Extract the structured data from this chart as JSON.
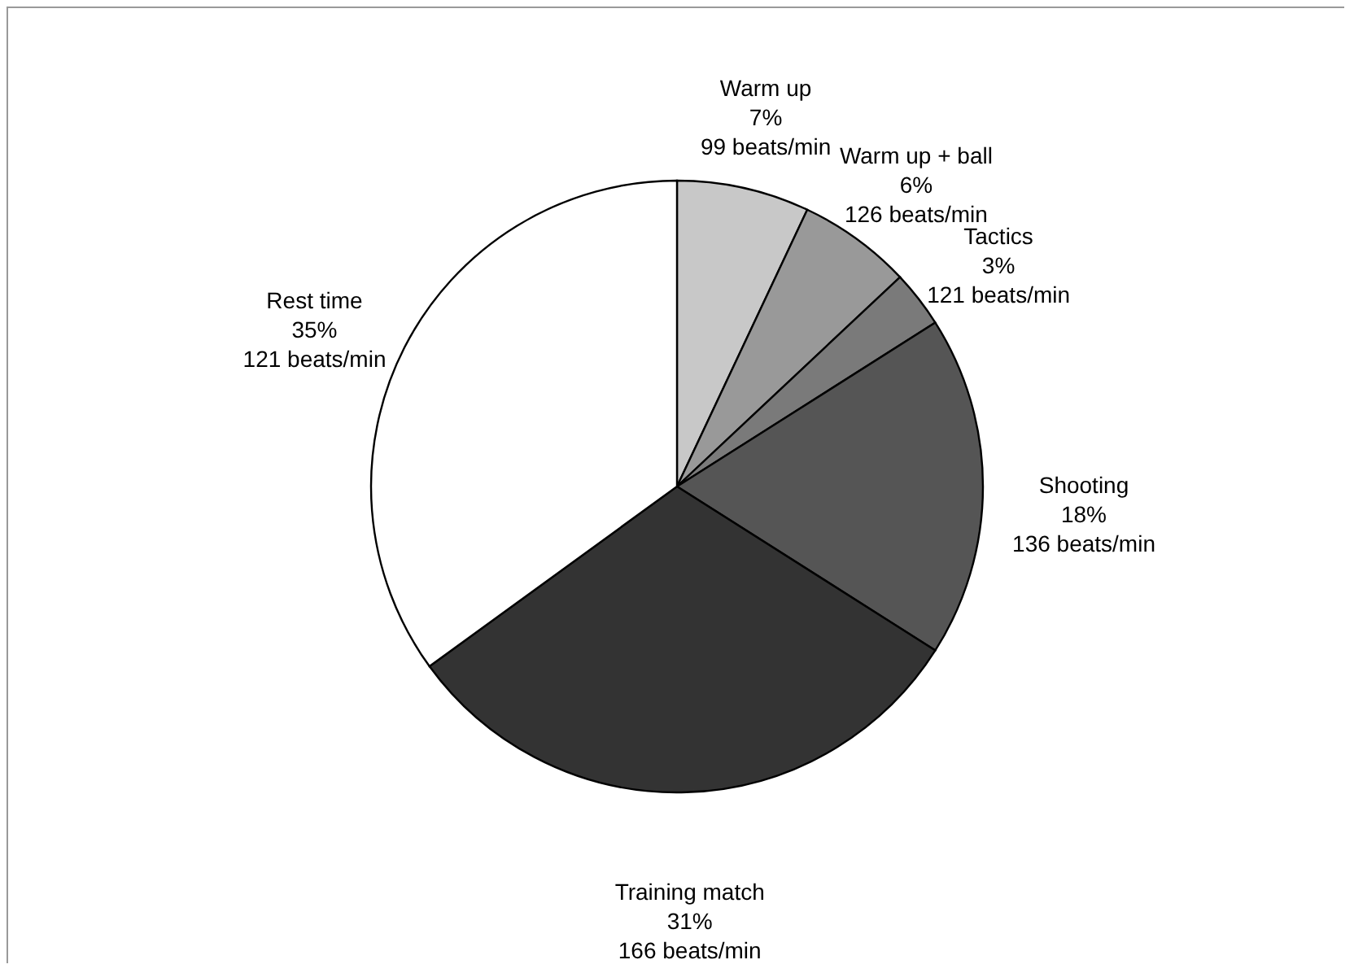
{
  "chart_data": {
    "type": "pie",
    "categories": [
      "Warm up",
      "Warm up + ball",
      "Tactics",
      "Shooting",
      "Training match",
      "Rest time"
    ],
    "values": [
      7,
      6,
      3,
      18,
      31,
      35
    ],
    "colors": [
      "#c8c8c8",
      "#999999",
      "#7a7a7a",
      "#555555",
      "#333333",
      "#ffffff"
    ],
    "value_labels": [
      "7%",
      "6%",
      "3%",
      "18%",
      "31%",
      "35%"
    ],
    "annotations": [
      "99 beats/min",
      "126 beats/min",
      "121 beats/min",
      "136 beats/min",
      "166 beats/min",
      "121 beats/min"
    ]
  }
}
